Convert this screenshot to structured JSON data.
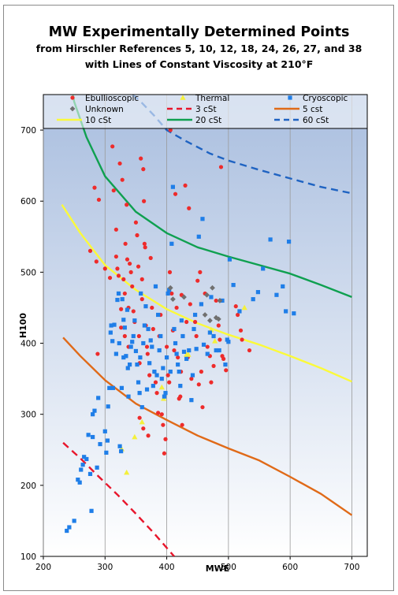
{
  "chart_data": {
    "type": "scatter",
    "title": "MW Experimentally Determined Points",
    "subtitle_line1": "from Hirschler References 5, 10, 12, 18, 24, 26, 27, and 38",
    "subtitle_line2": "with Lines of Constant Viscosity at 210°F",
    "xlabel": "MWE",
    "ylabel": "H100",
    "xlim": [
      200,
      725
    ],
    "ylim": [
      100,
      750
    ],
    "xticks": [
      200,
      300,
      400,
      500,
      600,
      700
    ],
    "yticks": [
      100,
      200,
      300,
      400,
      500,
      600,
      700
    ],
    "grid": "vertical",
    "legend_position": "top",
    "background_gradient": [
      "#a9bedf",
      "#ffffff"
    ],
    "series": [
      {
        "name": "Ebullioscopic",
        "marker": "circle",
        "color": "#ee2b2b",
        "points": [
          [
            276,
            530
          ],
          [
            283,
            619
          ],
          [
            286,
            515
          ],
          [
            290,
            602
          ],
          [
            288,
            385
          ],
          [
            300,
            505
          ],
          [
            308,
            492
          ],
          [
            312,
            677
          ],
          [
            314,
            615
          ],
          [
            318,
            560
          ],
          [
            318,
            522
          ],
          [
            320,
            505
          ],
          [
            322,
            495
          ],
          [
            324,
            653
          ],
          [
            326,
            448
          ],
          [
            326,
            422
          ],
          [
            328,
            630
          ],
          [
            330,
            490
          ],
          [
            332,
            470
          ],
          [
            332,
            410
          ],
          [
            333,
            540
          ],
          [
            335,
            595
          ],
          [
            336,
            518
          ],
          [
            338,
            450
          ],
          [
            338,
            395
          ],
          [
            340,
            512
          ],
          [
            342,
            500
          ],
          [
            344,
            480
          ],
          [
            346,
            445
          ],
          [
            348,
            430
          ],
          [
            350,
            570
          ],
          [
            352,
            552
          ],
          [
            354,
            508
          ],
          [
            355,
            410
          ],
          [
            356,
            372
          ],
          [
            356,
            295
          ],
          [
            358,
            660
          ],
          [
            360,
            490
          ],
          [
            360,
            462
          ],
          [
            362,
            645
          ],
          [
            362,
            280
          ],
          [
            363,
            600
          ],
          [
            364,
            540
          ],
          [
            365,
            535
          ],
          [
            366,
            425
          ],
          [
            368,
            395
          ],
          [
            369,
            385
          ],
          [
            370,
            270
          ],
          [
            372,
            355
          ],
          [
            374,
            520
          ],
          [
            376,
            450
          ],
          [
            378,
            420
          ],
          [
            380,
            360
          ],
          [
            382,
            345
          ],
          [
            384,
            330
          ],
          [
            386,
            302
          ],
          [
            388,
            410
          ],
          [
            390,
            440
          ],
          [
            392,
            300
          ],
          [
            394,
            285
          ],
          [
            396,
            245
          ],
          [
            398,
            265
          ],
          [
            400,
            395
          ],
          [
            402,
            355
          ],
          [
            404,
            345
          ],
          [
            405,
            500
          ],
          [
            406,
            700
          ],
          [
            408,
            470
          ],
          [
            410,
            418
          ],
          [
            412,
            390
          ],
          [
            414,
            610
          ],
          [
            416,
            450
          ],
          [
            418,
            380
          ],
          [
            420,
            322
          ],
          [
            422,
            325
          ],
          [
            423,
            360
          ],
          [
            424,
            468
          ],
          [
            425,
            285
          ],
          [
            430,
            622
          ],
          [
            432,
            430
          ],
          [
            434,
            380
          ],
          [
            436,
            590
          ],
          [
            438,
            455
          ],
          [
            440,
            350
          ],
          [
            446,
            430
          ],
          [
            448,
            410
          ],
          [
            450,
            488
          ],
          [
            452,
            342
          ],
          [
            454,
            500
          ],
          [
            456,
            360
          ],
          [
            458,
            310
          ],
          [
            462,
            470
          ],
          [
            466,
            395
          ],
          [
            470,
            382
          ],
          [
            472,
            345
          ],
          [
            476,
            368
          ],
          [
            480,
            460
          ],
          [
            484,
            425
          ],
          [
            486,
            405
          ],
          [
            488,
            648
          ],
          [
            490,
            382
          ],
          [
            492,
            378
          ],
          [
            496,
            362
          ],
          [
            512,
            452
          ],
          [
            515,
            440
          ],
          [
            520,
            418
          ],
          [
            522,
            405
          ],
          [
            534,
            390
          ]
        ]
      },
      {
        "name": "Thermal",
        "marker": "triangle",
        "color": "#f4f03c",
        "points": [
          [
            327,
            251
          ],
          [
            335,
            218
          ],
          [
            348,
            268
          ],
          [
            360,
            289
          ],
          [
            392,
            338
          ],
          [
            395,
            322
          ],
          [
            432,
            384
          ],
          [
            435,
            384
          ],
          [
            472,
            419
          ],
          [
            478,
            403
          ],
          [
            526,
            450
          ]
        ]
      },
      {
        "name": "Cryoscopic",
        "marker": "square",
        "color": "#1f7ee8",
        "points": [
          [
            238,
            136
          ],
          [
            242,
            141
          ],
          [
            250,
            150
          ],
          [
            256,
            208
          ],
          [
            259,
            204
          ],
          [
            261,
            222
          ],
          [
            264,
            229
          ],
          [
            266,
            240
          ],
          [
            270,
            237
          ],
          [
            273,
            271
          ],
          [
            276,
            216
          ],
          [
            278,
            164
          ],
          [
            280,
            268
          ],
          [
            280,
            300
          ],
          [
            283,
            305
          ],
          [
            287,
            225
          ],
          [
            289,
            323
          ],
          [
            292,
            258
          ],
          [
            300,
            276
          ],
          [
            302,
            246
          ],
          [
            304,
            263
          ],
          [
            305,
            311
          ],
          [
            307,
            337
          ],
          [
            309,
            415
          ],
          [
            310,
            425
          ],
          [
            312,
            403
          ],
          [
            313,
            337
          ],
          [
            315,
            426
          ],
          [
            318,
            385
          ],
          [
            320,
            461
          ],
          [
            322,
            470
          ],
          [
            323,
            400
          ],
          [
            324,
            255
          ],
          [
            326,
            248
          ],
          [
            327,
            337
          ],
          [
            328,
            462
          ],
          [
            330,
            380
          ],
          [
            330,
            433
          ],
          [
            332,
            422
          ],
          [
            334,
            382
          ],
          [
            336,
            447
          ],
          [
            337,
            365
          ],
          [
            338,
            325
          ],
          [
            340,
            370
          ],
          [
            342,
            395
          ],
          [
            344,
            402
          ],
          [
            346,
            410
          ],
          [
            348,
            432
          ],
          [
            350,
            389
          ],
          [
            352,
            370
          ],
          [
            354,
            345
          ],
          [
            356,
            330
          ],
          [
            357,
            380
          ],
          [
            358,
            470
          ],
          [
            360,
            310
          ],
          [
            362,
            400
          ],
          [
            364,
            425
          ],
          [
            366,
            452
          ],
          [
            368,
            335
          ],
          [
            370,
            420
          ],
          [
            372,
            372
          ],
          [
            374,
            404
          ],
          [
            376,
            395
          ],
          [
            378,
            340
          ],
          [
            380,
            360
          ],
          [
            382,
            480
          ],
          [
            384,
            355
          ],
          [
            386,
            440
          ],
          [
            388,
            390
          ],
          [
            390,
            410
          ],
          [
            392,
            350
          ],
          [
            394,
            365
          ],
          [
            396,
            325
          ],
          [
            398,
            330
          ],
          [
            400,
            380
          ],
          [
            402,
            470
          ],
          [
            404,
            475
          ],
          [
            406,
            360
          ],
          [
            408,
            540
          ],
          [
            410,
            620
          ],
          [
            412,
            420
          ],
          [
            414,
            400
          ],
          [
            416,
            385
          ],
          [
            418,
            370
          ],
          [
            420,
            360
          ],
          [
            422,
            340
          ],
          [
            424,
            432
          ],
          [
            426,
            410
          ],
          [
            428,
            388
          ],
          [
            432,
            378
          ],
          [
            436,
            390
          ],
          [
            440,
            320
          ],
          [
            442,
            355
          ],
          [
            444,
            420
          ],
          [
            446,
            440
          ],
          [
            448,
            392
          ],
          [
            452,
            550
          ],
          [
            456,
            455
          ],
          [
            458,
            575
          ],
          [
            460,
            398
          ],
          [
            466,
            385
          ],
          [
            470,
            415
          ],
          [
            472,
            465
          ],
          [
            476,
            410
          ],
          [
            480,
            390
          ],
          [
            485,
            390
          ],
          [
            490,
            460
          ],
          [
            495,
            370
          ],
          [
            498,
            405
          ],
          [
            500,
            402
          ],
          [
            502,
            518
          ],
          [
            508,
            482
          ],
          [
            518,
            445
          ],
          [
            540,
            462
          ],
          [
            548,
            472
          ],
          [
            556,
            505
          ],
          [
            568,
            546
          ],
          [
            578,
            468
          ],
          [
            588,
            480
          ],
          [
            593,
            445
          ],
          [
            598,
            543
          ],
          [
            606,
            442
          ]
        ]
      },
      {
        "name": "Unknown",
        "marker": "diamond",
        "color": "#707070",
        "points": [
          [
            406,
            478
          ],
          [
            410,
            462
          ],
          [
            428,
            465
          ],
          [
            462,
            440
          ],
          [
            465,
            468
          ],
          [
            470,
            432
          ],
          [
            474,
            478
          ],
          [
            480,
            436
          ],
          [
            484,
            434
          ],
          [
            486,
            460
          ]
        ]
      }
    ],
    "curves": [
      {
        "name": "3 cSt",
        "color": "#e8162c",
        "dash": "dashed",
        "points": [
          [
            232,
            260
          ],
          [
            260,
            238
          ],
          [
            290,
            212
          ],
          [
            320,
            187
          ],
          [
            350,
            160
          ],
          [
            380,
            132
          ],
          [
            412,
            100
          ]
        ]
      },
      {
        "name": "5 cst",
        "color": "#e06a18",
        "dash": "solid",
        "points": [
          [
            232,
            408
          ],
          [
            260,
            382
          ],
          [
            300,
            348
          ],
          [
            350,
            315
          ],
          [
            400,
            292
          ],
          [
            450,
            270
          ],
          [
            500,
            252
          ],
          [
            550,
            235
          ],
          [
            600,
            212
          ],
          [
            650,
            188
          ],
          [
            700,
            158
          ]
        ]
      },
      {
        "name": "10 cSt",
        "color": "#fbfa3a",
        "dash": "solid",
        "points": [
          [
            230,
            595
          ],
          [
            260,
            555
          ],
          [
            300,
            510
          ],
          [
            350,
            475
          ],
          [
            400,
            448
          ],
          [
            450,
            428
          ],
          [
            500,
            412
          ],
          [
            550,
            398
          ],
          [
            600,
            382
          ],
          [
            650,
            365
          ],
          [
            700,
            346
          ]
        ]
      },
      {
        "name": "20 cSt",
        "color": "#0fa050",
        "dash": "solid",
        "points": [
          [
            248,
            750
          ],
          [
            250,
            740
          ],
          [
            270,
            690
          ],
          [
            300,
            635
          ],
          [
            350,
            585
          ],
          [
            400,
            555
          ],
          [
            450,
            535
          ],
          [
            500,
            522
          ],
          [
            550,
            510
          ],
          [
            600,
            498
          ],
          [
            650,
            482
          ],
          [
            700,
            465
          ]
        ]
      },
      {
        "name": "60 cSt",
        "color": "#1f63c2",
        "dash": "dashed",
        "points": [
          [
            345,
            750
          ],
          [
            360,
            738
          ],
          [
            380,
            720
          ],
          [
            400,
            700
          ],
          [
            430,
            685
          ],
          [
            470,
            667
          ],
          [
            500,
            657
          ],
          [
            550,
            644
          ],
          [
            600,
            632
          ],
          [
            650,
            620
          ],
          [
            700,
            611
          ]
        ]
      }
    ]
  }
}
